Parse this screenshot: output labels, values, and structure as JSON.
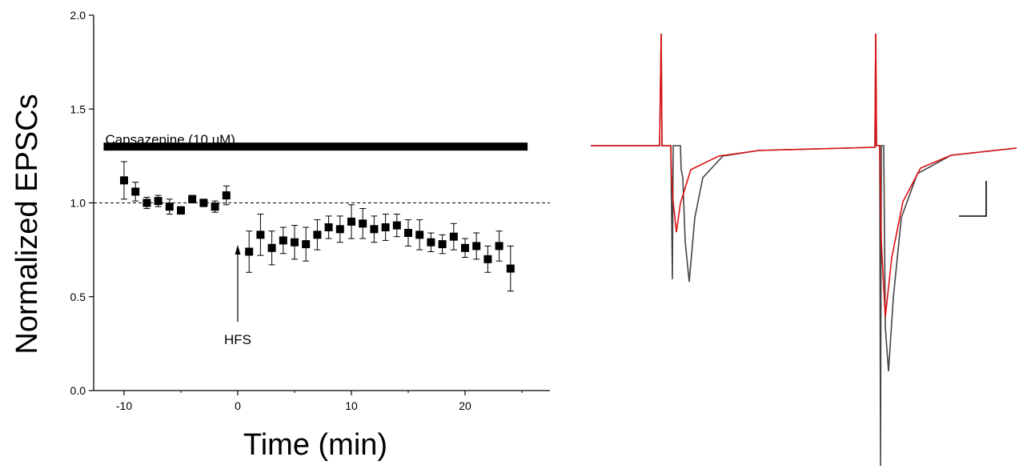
{
  "chart_data": [
    {
      "type": "scatter",
      "xlabel": "Time (min)",
      "ylabel": "Normalized EPSCs",
      "xlim": [
        -13,
        26
      ],
      "ylim": [
        0.0,
        2.0
      ],
      "x_ticks": [
        -10,
        0,
        10,
        20
      ],
      "y_ticks": [
        "0.0",
        "0.5",
        "1.0",
        "1.5",
        "2.0"
      ],
      "grid": false,
      "reference_line": {
        "y": 1.0,
        "style": "dashed"
      },
      "drug_bar": {
        "label": "Capsazepine (10 uM)",
        "x_start": -11.8,
        "x_end": 25.5,
        "y": 1.3
      },
      "arrow_annotation": {
        "label": "HFS",
        "x": 0
      },
      "series": [
        {
          "marker": "square",
          "color": "#000000",
          "x": [
            -10,
            -9,
            -8,
            -7,
            -6,
            -5,
            -4,
            -3,
            -2,
            -1,
            1,
            2,
            3,
            4,
            5,
            6,
            7,
            8,
            9,
            10,
            11,
            12,
            13,
            14,
            15,
            16,
            17,
            18,
            19,
            20,
            21,
            22,
            23,
            24
          ],
          "y": [
            1.12,
            1.06,
            1.0,
            1.01,
            0.98,
            0.96,
            1.02,
            1.0,
            0.98,
            1.04,
            0.74,
            0.83,
            0.76,
            0.8,
            0.79,
            0.78,
            0.83,
            0.87,
            0.86,
            0.9,
            0.89,
            0.86,
            0.87,
            0.88,
            0.84,
            0.83,
            0.79,
            0.78,
            0.82,
            0.76,
            0.77,
            0.7,
            0.77,
            0.65
          ],
          "error": [
            0.1,
            0.05,
            0.03,
            0.03,
            0.04,
            0.02,
            0.02,
            0.02,
            0.03,
            0.05,
            0.11,
            0.11,
            0.09,
            0.07,
            0.09,
            0.09,
            0.08,
            0.06,
            0.07,
            0.09,
            0.08,
            0.07,
            0.07,
            0.06,
            0.07,
            0.08,
            0.05,
            0.05,
            0.07,
            0.05,
            0.07,
            0.07,
            0.08,
            0.12
          ]
        }
      ]
    },
    {
      "type": "line",
      "description_free": true,
      "series": [
        {
          "color": "#444444",
          "points": [
            [
              0,
              0
            ],
            [
              86,
              0
            ],
            [
              88,
              280
            ],
            [
              89,
              0
            ],
            [
              100,
              0
            ],
            [
              102,
              167
            ],
            [
              103,
              0
            ],
            [
              112,
              0
            ],
            [
              113,
              30
            ],
            [
              115,
              40
            ],
            [
              118,
              120
            ],
            [
              123,
              170
            ],
            [
              130,
              90
            ],
            [
              140,
              40
            ],
            [
              165,
              13
            ],
            [
              210,
              6
            ],
            [
              355,
              2
            ],
            [
              356,
              290
            ],
            [
              357,
              0
            ],
            [
              361,
              0
            ],
            [
              362,
              400
            ],
            [
              363,
              0
            ],
            [
              366,
              0
            ],
            [
              368,
              227
            ],
            [
              372,
              282
            ],
            [
              378,
              190
            ],
            [
              388,
              90
            ],
            [
              408,
              35
            ],
            [
              450,
              12
            ],
            [
              532,
              3
            ]
          ]
        },
        {
          "color": "#dd1111",
          "points": [
            [
              0,
              0
            ],
            [
              86,
              0
            ],
            [
              88,
              280
            ],
            [
              89,
              0
            ],
            [
              100,
              0
            ],
            [
              101,
              40
            ],
            [
              103,
              70
            ],
            [
              107,
              108
            ],
            [
              112,
              72
            ],
            [
              125,
              30
            ],
            [
              160,
              13
            ],
            [
              210,
              6
            ],
            [
              355,
              2
            ],
            [
              356,
              290
            ],
            [
              357,
              0
            ],
            [
              361,
              0
            ],
            [
              363,
              120
            ],
            [
              368,
              214
            ],
            [
              376,
              140
            ],
            [
              390,
              70
            ],
            [
              412,
              28
            ],
            [
              450,
              12
            ],
            [
              532,
              3
            ]
          ]
        }
      ]
    }
  ]
}
